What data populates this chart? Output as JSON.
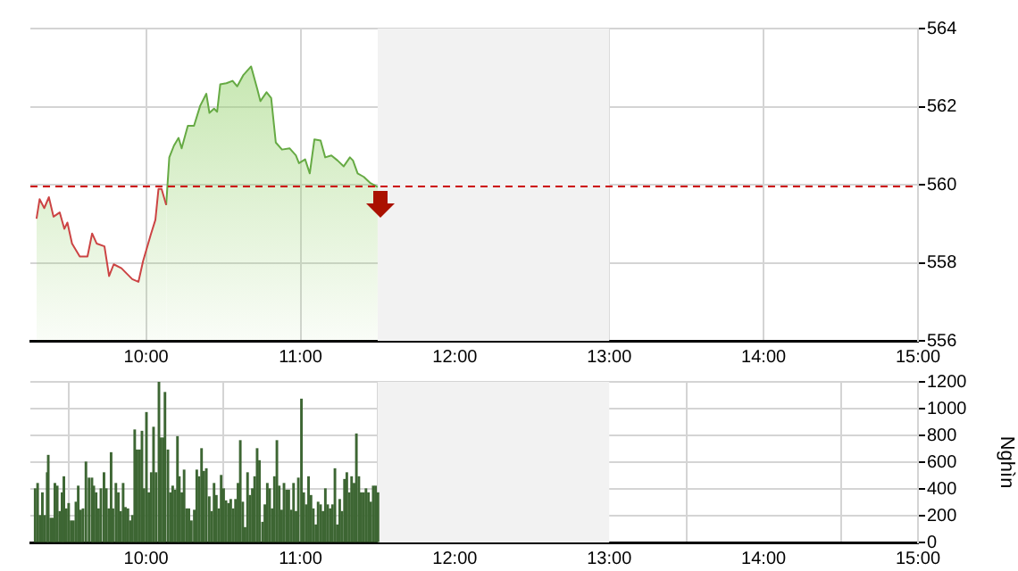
{
  "chart_data": [
    {
      "type": "area",
      "xlim": [
        9.25,
        15
      ],
      "xticks": [
        {
          "value": 10,
          "label": "10:00"
        },
        {
          "value": 11,
          "label": "11:00"
        },
        {
          "value": 12,
          "label": "12:00"
        },
        {
          "value": 13,
          "label": "13:00"
        },
        {
          "value": 14,
          "label": "14:00"
        },
        {
          "value": 15,
          "label": "15:00"
        }
      ],
      "ylim": [
        556,
        564
      ],
      "yticks": [
        556,
        558,
        560,
        562,
        564
      ],
      "grid": true,
      "legend": false,
      "series": [
        {
          "color": "#cc4444",
          "x": [
            9.29,
            9.31,
            9.34,
            9.37,
            9.4,
            9.44,
            9.47,
            9.49,
            9.52,
            9.57,
            9.62,
            9.65,
            9.68,
            9.73,
            9.76,
            9.79,
            9.84,
            9.88,
            9.91,
            9.95,
            9.98,
            10.03,
            10.06,
            10.08,
            10.1,
            10.13
          ],
          "values": [
            559.13,
            559.63,
            559.4,
            559.68,
            559.18,
            559.29,
            558.87,
            559.03,
            558.49,
            558.16,
            558.16,
            558.75,
            558.49,
            558.42,
            557.66,
            557.96,
            557.86,
            557.7,
            557.58,
            557.51,
            558.04,
            558.72,
            559.1,
            559.89,
            559.89,
            559.48
          ]
        },
        {
          "color": "#66aa44",
          "x": [
            10.13,
            10.15,
            10.18,
            10.21,
            10.23,
            10.27,
            10.31,
            10.35,
            10.39,
            10.41,
            10.44,
            10.46,
            10.48,
            10.52,
            10.56,
            10.59,
            10.63,
            10.68,
            10.72,
            10.74,
            10.78,
            10.81,
            10.84,
            10.88,
            10.93,
            10.97,
            10.99,
            11.03,
            11.06,
            11.09,
            11.13,
            11.16,
            11.2,
            11.24,
            11.28,
            11.32,
            11.34,
            11.37,
            11.41,
            11.45,
            11.5
          ],
          "values": [
            559.48,
            560.7,
            561.0,
            561.2,
            560.93,
            561.51,
            561.51,
            562.02,
            562.33,
            561.84,
            561.95,
            561.87,
            562.57,
            562.6,
            562.66,
            562.52,
            562.81,
            563.03,
            562.45,
            562.14,
            562.37,
            562.22,
            561.08,
            560.9,
            560.93,
            560.75,
            560.55,
            560.65,
            560.29,
            561.16,
            561.13,
            560.7,
            560.75,
            560.62,
            560.47,
            560.7,
            560.62,
            560.29,
            560.2,
            560.05,
            559.94
          ]
        }
      ],
      "ref_lines": [
        {
          "axis": "y",
          "value": 560,
          "color": "#cc0000",
          "line_style": "dashed"
        }
      ],
      "bands": [
        {
          "axis": "x",
          "from": 11.5,
          "to": 13,
          "color": "#f2f2f2"
        }
      ]
    },
    {
      "type": "bar",
      "ylabel": "Nghìn",
      "xlim": [
        9.25,
        15
      ],
      "xticks": [
        {
          "value": 10,
          "label": "10:00"
        },
        {
          "value": 11,
          "label": "11:00"
        },
        {
          "value": 12,
          "label": "12:00"
        },
        {
          "value": 13,
          "label": "13:00"
        },
        {
          "value": 14,
          "label": "14:00"
        },
        {
          "value": 15,
          "label": "15:00"
        }
      ],
      "ylim": [
        0,
        1200
      ],
      "yticks": [
        0,
        200,
        400,
        600,
        800,
        1000,
        1200
      ],
      "grid": true,
      "legend": false,
      "series": [
        {
          "color": "#3d6633",
          "x": [
            9.281,
            9.297,
            9.312,
            9.328,
            9.343,
            9.359,
            9.366,
            9.382,
            9.397,
            9.409,
            9.424,
            9.44,
            9.455,
            9.467,
            9.483,
            9.498,
            9.514,
            9.529,
            9.545,
            9.56,
            9.576,
            9.591,
            9.61,
            9.63,
            9.649,
            9.661,
            9.676,
            9.692,
            9.707,
            9.727,
            9.742,
            9.758,
            9.773,
            9.785,
            9.804,
            9.82,
            9.835,
            9.851,
            9.866,
            9.882,
            9.897,
            9.911,
            9.926,
            9.941,
            9.958,
            9.973,
            9.986,
            10.002,
            10.017,
            10.033,
            10.048,
            10.064,
            10.083,
            10.095,
            10.11,
            10.122,
            10.141,
            10.157,
            10.172,
            10.188,
            10.203,
            10.215,
            10.231,
            10.246,
            10.262,
            10.277,
            10.293,
            10.312,
            10.328,
            10.343,
            10.359,
            10.374,
            10.39,
            10.409,
            10.424,
            10.44,
            10.455,
            10.471,
            10.486,
            10.502,
            10.517,
            10.533,
            10.548,
            10.564,
            10.579,
            10.595,
            10.61,
            10.626,
            10.641,
            10.657,
            10.672,
            10.688,
            10.703,
            10.719,
            10.734,
            10.754,
            10.769,
            10.785,
            10.8,
            10.816,
            10.831,
            10.847,
            10.862,
            10.878,
            10.893,
            10.909,
            10.924,
            10.94,
            10.955,
            10.971,
            10.986,
            11.006,
            11.021,
            11.037,
            11.052,
            11.068,
            11.083,
            11.099,
            11.114,
            11.13,
            11.145,
            11.161,
            11.176,
            11.192,
            11.207,
            11.223,
            11.238,
            11.254,
            11.269,
            11.285,
            11.3,
            11.316,
            11.331,
            11.347,
            11.362,
            11.378,
            11.393,
            11.409,
            11.424,
            11.44,
            11.455,
            11.471,
            11.486,
            11.502
          ],
          "values": [
            400,
            440,
            200,
            370,
            200,
            520,
            650,
            180,
            180,
            440,
            420,
            230,
            370,
            490,
            250,
            290,
            160,
            160,
            300,
            420,
            240,
            250,
            600,
            480,
            480,
            420,
            370,
            250,
            400,
            520,
            400,
            250,
            670,
            250,
            440,
            370,
            230,
            440,
            260,
            250,
            160,
            200,
            840,
            690,
            690,
            830,
            400,
            970,
            370,
            520,
            860,
            520,
            1200,
            780,
            780,
            1120,
            690,
            370,
            420,
            390,
            790,
            490,
            370,
            540,
            250,
            250,
            160,
            240,
            540,
            490,
            700,
            530,
            550,
            340,
            230,
            440,
            350,
            250,
            500,
            400,
            310,
            290,
            320,
            250,
            320,
            440,
            760,
            300,
            110,
            520,
            350,
            400,
            490,
            700,
            610,
            150,
            280,
            440,
            400,
            250,
            490,
            760,
            420,
            240,
            440,
            390,
            390,
            240,
            440,
            230,
            480,
            1070,
            370,
            280,
            490,
            350,
            250,
            130,
            300,
            280,
            230,
            400,
            280,
            250,
            280,
            550,
            130,
            320,
            230,
            470,
            520,
            370,
            490,
            440,
            810,
            490,
            370,
            370,
            400,
            370,
            300,
            420,
            420,
            370
          ]
        }
      ],
      "bands": [
        {
          "axis": "x",
          "from": 11.5,
          "to": 13,
          "color": "#f2f2f2"
        }
      ]
    }
  ]
}
